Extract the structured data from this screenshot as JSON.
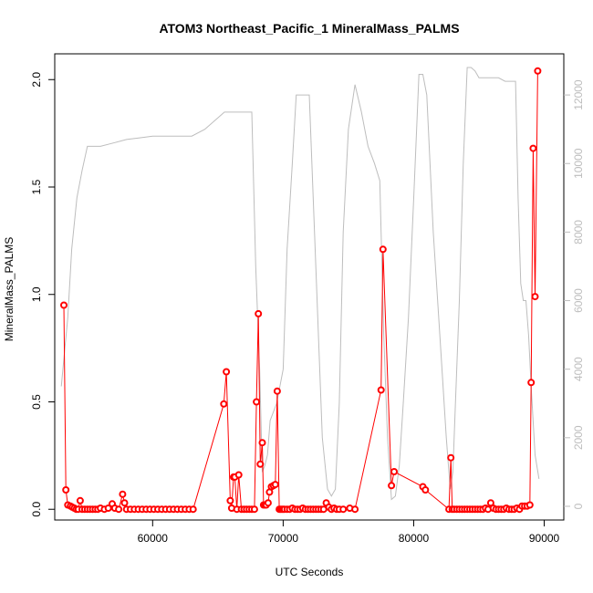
{
  "chart_data": {
    "type": "line",
    "title": "ATOM3 Northeast_Pacific_1 MineralMass_PALMS",
    "xlabel": "UTC Seconds",
    "ylabel": "MineralMass_PALMS",
    "xlim": [
      52500,
      91500
    ],
    "ylim": [
      -0.05,
      2.12
    ],
    "y2lim": [
      -400,
      13200
    ],
    "xticks": [
      "60000",
      "70000",
      "80000",
      "90000"
    ],
    "yticks": [
      "0.0",
      "0.5",
      "1.0",
      "1.5",
      "2.0"
    ],
    "y2ticks": [
      "0",
      "2000",
      "4000",
      "6000",
      "8000",
      "10000",
      "12000"
    ],
    "colors": {
      "primary": "#ff0000",
      "secondary": "#bdbdbd"
    },
    "series": [
      {
        "axis": "left",
        "x": [
          53200,
          53350,
          53500,
          53700,
          53850,
          54000,
          54150,
          54300,
          54450,
          54600,
          54800,
          55000,
          55200,
          55400,
          55600,
          55800,
          56000,
          56300,
          56600,
          56900,
          57100,
          57400,
          57700,
          57850,
          58000,
          58300,
          58600,
          58900,
          59200,
          59500,
          59800,
          60100,
          60400,
          60700,
          61000,
          61300,
          61600,
          61900,
          62200,
          62500,
          62800,
          63100,
          65450,
          65650,
          65950,
          66050,
          66200,
          66300,
          66450,
          66600,
          66800,
          67000,
          67200,
          67400,
          67600,
          67800,
          67950,
          68100,
          68250,
          68400,
          68500,
          68600,
          68700,
          68850,
          68950,
          69100,
          69250,
          69400,
          69550,
          69700,
          69800,
          69900,
          70000,
          70100,
          70300,
          70500,
          70700,
          70900,
          71100,
          71300,
          71500,
          71700,
          71900,
          72100,
          72300,
          72500,
          72700,
          72900,
          73100,
          73300,
          73500,
          73700,
          73900,
          74100,
          74300,
          74600,
          75100,
          75500,
          77500,
          77650,
          78300,
          78500,
          80700,
          80900,
          82700,
          82850,
          82950,
          83100,
          83300,
          83500,
          83700,
          83900,
          84100,
          84300,
          84500,
          84700,
          84900,
          85100,
          85300,
          85500,
          85700,
          85900,
          86100,
          86300,
          86500,
          86700,
          86900,
          87100,
          87300,
          87500,
          87700,
          87900,
          88100,
          88300,
          88500,
          88700,
          88900,
          89000,
          89150,
          89300,
          89500
        ],
        "values": [
          0.95,
          0.09,
          0.02,
          0.015,
          0.01,
          0.005,
          0.0,
          0.0,
          0.04,
          0.0,
          0.0,
          0.0,
          0.0,
          0.0,
          0.0,
          0.0,
          0.005,
          0.0,
          0.005,
          0.025,
          0.005,
          0.0,
          0.07,
          0.03,
          0.0,
          0.0,
          0.0,
          0.0,
          0.0,
          0.0,
          0.0,
          0.0,
          0.0,
          0.0,
          0.0,
          0.0,
          0.0,
          0.0,
          0.0,
          0.0,
          0.0,
          0.0,
          0.49,
          0.64,
          0.04,
          0.005,
          0.15,
          0.15,
          0.0,
          0.16,
          0.0,
          0.0,
          0.0,
          0.0,
          0.0,
          0.0,
          0.5,
          0.91,
          0.21,
          0.31,
          0.02,
          0.02,
          0.02,
          0.03,
          0.08,
          0.105,
          0.11,
          0.115,
          0.55,
          0.0,
          0.0,
          0.0,
          0.0,
          0.0,
          0.0,
          0.0,
          0.005,
          0.0,
          0.0,
          0.0,
          0.005,
          0.0,
          0.0,
          0.0,
          0.0,
          0.0,
          0.0,
          0.0,
          0.0,
          0.03,
          0.01,
          0.0,
          0.005,
          0.0,
          0.0,
          0.0,
          0.005,
          0.0,
          0.555,
          1.21,
          0.11,
          0.175,
          0.105,
          0.09,
          0.0,
          0.24,
          0.0,
          0.0,
          0.0,
          0.0,
          0.0,
          0.0,
          0.0,
          0.0,
          0.0,
          0.0,
          0.0,
          0.0,
          0.0,
          0.005,
          0.0,
          0.03,
          0.005,
          0.0,
          0.0,
          0.0,
          0.0,
          0.005,
          0.0,
          0.0,
          0.0,
          0.005,
          0.0,
          0.015,
          0.015,
          0.015,
          0.02,
          0.59,
          1.68,
          0.99,
          2.04
        ]
      },
      {
        "axis": "right",
        "x": [
          53000,
          53250,
          53500,
          53800,
          54200,
          54600,
          55000,
          56000,
          57000,
          58000,
          59000,
          60000,
          61000,
          62000,
          63000,
          64000,
          65500,
          66000,
          67000,
          67600,
          67900,
          68200,
          68400,
          68600,
          68800,
          69000,
          69500,
          70000,
          70300,
          70700,
          71000,
          71500,
          72000,
          72300,
          72600,
          73000,
          73400,
          73700,
          74000,
          74300,
          74600,
          75000,
          75500,
          76000,
          76500,
          77000,
          77400,
          77700,
          78000,
          78300,
          78600,
          78900,
          79200,
          79600,
          80000,
          80400,
          80700,
          81000,
          81500,
          82000,
          82500,
          82800,
          83000,
          83200,
          83500,
          83800,
          84100,
          84400,
          84700,
          85000,
          85500,
          86000,
          86500,
          87000,
          87500,
          87800,
          88000,
          88200,
          88400,
          88600,
          88800,
          89000,
          89300,
          89600
        ],
        "values": [
          3500,
          4500,
          5500,
          7500,
          9000,
          9800,
          10500,
          10500,
          10600,
          10700,
          10750,
          10800,
          10800,
          10800,
          10800,
          11000,
          11500,
          11500,
          11500,
          11500,
          7000,
          4000,
          1000,
          1200,
          1500,
          2500,
          3000,
          4000,
          7500,
          10000,
          12000,
          12000,
          12000,
          9000,
          6000,
          2000,
          500,
          300,
          500,
          3000,
          8000,
          11000,
          12300,
          11500,
          10500,
          10000,
          9500,
          5000,
          2000,
          200,
          300,
          1200,
          3000,
          5500,
          9000,
          12600,
          12600,
          12000,
          8000,
          5000,
          2000,
          500,
          1000,
          3000,
          6000,
          10000,
          12800,
          12800,
          12700,
          12500,
          12500,
          12500,
          12500,
          12400,
          12400,
          12400,
          9000,
          6500,
          6000,
          6000,
          5000,
          3500,
          1500,
          800
        ]
      }
    ]
  }
}
